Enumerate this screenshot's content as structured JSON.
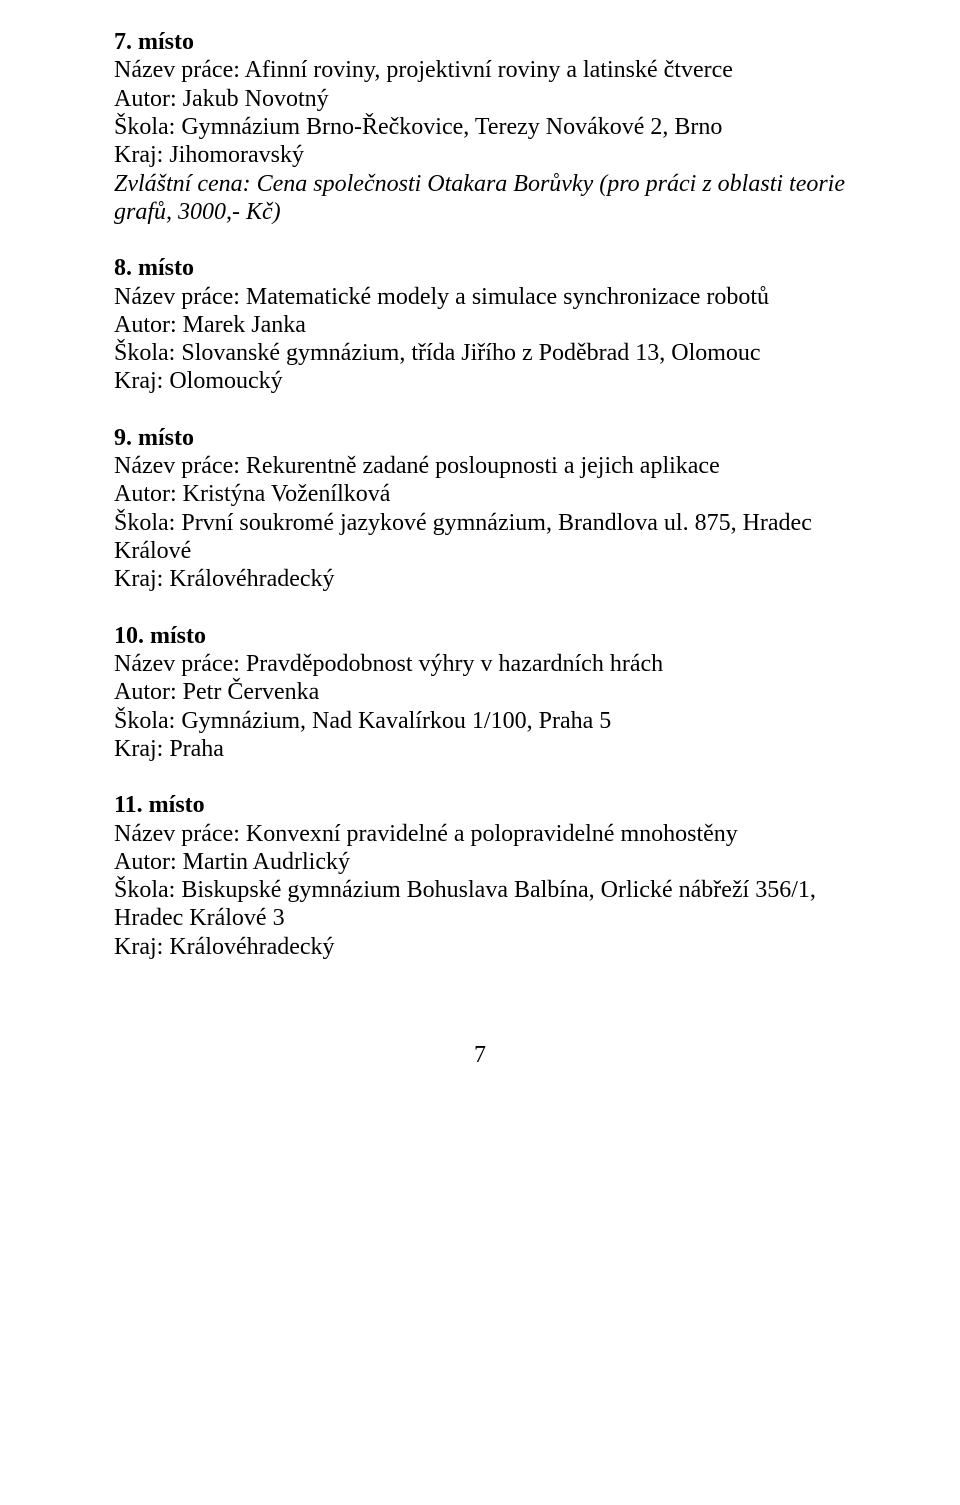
{
  "entries": [
    {
      "place_label": "7. místo",
      "title_label": "Název práce:",
      "title": "Afinní roviny, projektivní roviny a latinské čtverce",
      "author_label": "Autor:",
      "author": "Jakub Novotný",
      "school_label": "Škola:",
      "school": "Gymnázium Brno-Řečkovice, Terezy Novákové 2, Brno",
      "region_label": "Kraj:",
      "region": "Jihomoravský",
      "special_label": "Zvláštní cena:",
      "special_text": "Cena společnosti Otakara Borůvky (pro práci z oblasti teorie grafů, 3000,- Kč)"
    },
    {
      "place_label": "8. místo",
      "title_label": "Název práce:",
      "title": "Matematické modely a simulace synchronizace robotů",
      "author_label": "Autor:",
      "author": "Marek Janka",
      "school_label": "Škola:",
      "school": "Slovanské gymnázium, třída Jiřího z Poděbrad 13, Olomouc",
      "region_label": "Kraj:",
      "region": "Olomoucký"
    },
    {
      "place_label": "9. místo",
      "title_label": "Název práce:",
      "title": "Rekurentně zadané posloupnosti a jejich aplikace",
      "author_label": "Autor:",
      "author": "Kristýna Voženílková",
      "school_label": "Škola:",
      "school": "První soukromé jazykové gymnázium, Brandlova ul. 875, Hradec Králové",
      "region_label": "Kraj:",
      "region": "Královéhradecký"
    },
    {
      "place_label": "10. místo",
      "title_label": "Název práce:",
      "title": "Pravděpodobnost výhry v hazardních hrách",
      "author_label": "Autor:",
      "author": "Petr Červenka",
      "school_label": "Škola:",
      "school": "Gymnázium, Nad Kavalírkou 1/100, Praha 5",
      "region_label": "Kraj:",
      "region": "Praha"
    },
    {
      "place_label": "11. místo",
      "title_label": "Název práce:",
      "title": "Konvexní pravidelné a polopravidelné mnohostěny",
      "author_label": "Autor:",
      "author": "Martin Audrlický",
      "school_label": "Škola:",
      "school": "Biskupské gymnázium Bohuslava Balbína, Orlické nábřeží 356/1, Hradec Králové 3",
      "region_label": "Kraj:",
      "region": "Královéhradecký"
    }
  ],
  "page_number": "7"
}
